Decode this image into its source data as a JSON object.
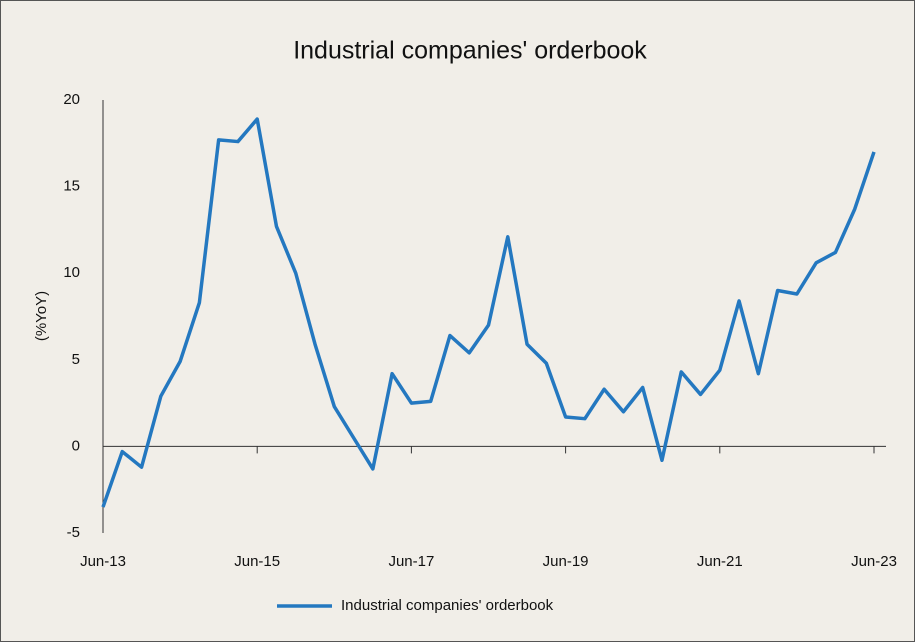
{
  "chart_data": {
    "type": "line",
    "title": "Industrial companies' orderbook",
    "y_label": "(%YoY)",
    "categories": [
      "Jun-13",
      null,
      null,
      null,
      null,
      null,
      null,
      null,
      "Jun-15",
      null,
      null,
      null,
      null,
      null,
      null,
      null,
      "Jun-17",
      null,
      null,
      null,
      null,
      null,
      null,
      null,
      "Jun-19",
      null,
      null,
      null,
      null,
      null,
      null,
      null,
      "Jun-21",
      null,
      null,
      null,
      null,
      null,
      null,
      null,
      "Jun-23"
    ],
    "series": [
      {
        "name": "Industrial companies' orderbook",
        "color": "#2478c0",
        "values": [
          -3.5,
          -0.3,
          -1.2,
          2.9,
          4.9,
          8.3,
          17.7,
          17.6,
          18.9,
          12.7,
          10.0,
          5.9,
          2.3,
          0.5,
          -1.3,
          4.2,
          2.5,
          2.6,
          6.4,
          5.4,
          7.0,
          12.1,
          5.9,
          4.8,
          1.7,
          1.6,
          3.3,
          2.0,
          3.4,
          -0.8,
          4.3,
          3.0,
          4.4,
          8.4,
          4.2,
          9.0,
          8.8,
          10.6,
          11.2,
          13.7,
          17.0
        ]
      }
    ],
    "ylim": [
      -5,
      20
    ],
    "yticks": [
      -5,
      0,
      5,
      10,
      15,
      20
    ],
    "grid": false,
    "legend": "bottom"
  }
}
